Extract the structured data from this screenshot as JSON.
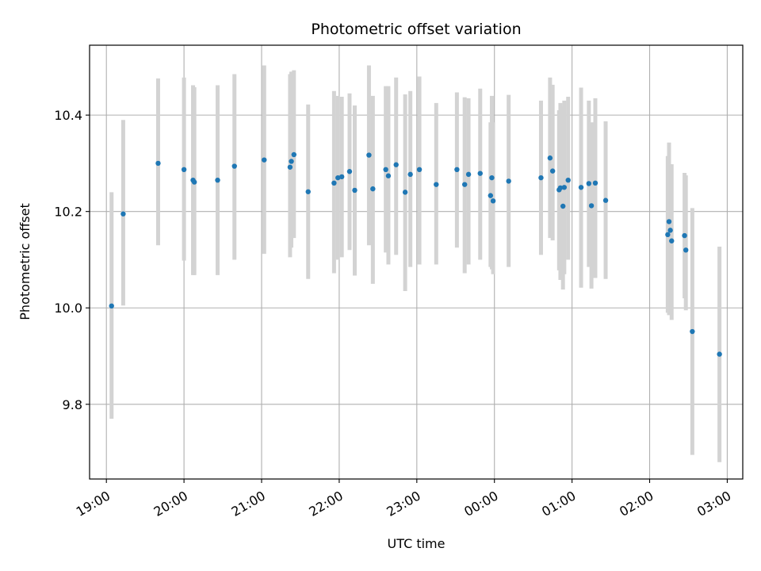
{
  "chart_data": {
    "type": "scatter",
    "title": "Photometric offset variation",
    "xlabel": "UTC time",
    "ylabel": "Photometric offset",
    "grid": true,
    "x_ticks": [
      {
        "label": "19:00",
        "hours": 19.0
      },
      {
        "label": "20:00",
        "hours": 20.0
      },
      {
        "label": "21:00",
        "hours": 21.0
      },
      {
        "label": "22:00",
        "hours": 22.0
      },
      {
        "label": "23:00",
        "hours": 23.0
      },
      {
        "label": "00:00",
        "hours": 24.0
      },
      {
        "label": "01:00",
        "hours": 25.0
      },
      {
        "label": "02:00",
        "hours": 26.0
      },
      {
        "label": "03:00",
        "hours": 27.0
      }
    ],
    "y_ticks": [
      9.8,
      10.0,
      10.2,
      10.4
    ],
    "xlim": [
      "18:47",
      "03:12"
    ],
    "ylim": [
      9.645,
      10.545
    ],
    "colors": {
      "points": "#1f77b4",
      "errorbars": "#d3d3d3",
      "grid": "#b0b0b0"
    },
    "series": [
      {
        "x": [
          "19:04",
          "19:13",
          "19:40",
          "20:00",
          "20:07",
          "20:08",
          "20:26",
          "20:39",
          "21:02",
          "21:22",
          "21:23",
          "21:25",
          "21:36",
          "21:56",
          "21:59",
          "22:02",
          "22:08",
          "22:12",
          "22:23",
          "22:26",
          "22:36",
          "22:38",
          "22:44",
          "22:51",
          "22:55",
          "23:02",
          "23:15",
          "23:31",
          "23:37",
          "23:40",
          "23:49",
          "23:57",
          "23:58",
          "23:59",
          "24:11",
          "24:36",
          "24:43",
          "24:45",
          "24:50",
          "24:51",
          "24:53",
          "24:54",
          "24:57",
          "25:07",
          "25:13",
          "25:15",
          "25:18",
          "25:26",
          "26:14",
          "26:15",
          "26:16",
          "26:17",
          "26:27",
          "26:28",
          "26:33",
          "26:54"
        ],
        "y": [
          10.004,
          10.195,
          10.3,
          10.287,
          10.265,
          10.261,
          10.265,
          10.294,
          10.307,
          10.292,
          10.304,
          10.318,
          10.241,
          10.259,
          10.27,
          10.272,
          10.283,
          10.244,
          10.317,
          10.247,
          10.287,
          10.274,
          10.297,
          10.24,
          10.277,
          10.287,
          10.256,
          10.287,
          10.256,
          10.277,
          10.279,
          10.233,
          10.27,
          10.222,
          10.263,
          10.27,
          10.311,
          10.284,
          10.245,
          10.249,
          10.211,
          10.25,
          10.265,
          10.25,
          10.258,
          10.212,
          10.259,
          10.223,
          10.152,
          10.179,
          10.161,
          10.139,
          10.15,
          10.12,
          9.951,
          9.904
        ],
        "err_low": [
          9.77,
          10.005,
          10.13,
          10.098,
          10.068,
          10.068,
          10.068,
          10.1,
          10.112,
          10.105,
          10.125,
          10.145,
          10.06,
          10.072,
          10.1,
          10.105,
          10.12,
          10.067,
          10.13,
          10.05,
          10.115,
          10.09,
          10.11,
          10.035,
          10.085,
          10.09,
          10.09,
          10.125,
          10.072,
          10.09,
          10.1,
          10.085,
          10.08,
          10.07,
          10.085,
          10.11,
          10.145,
          10.14,
          10.078,
          10.058,
          10.038,
          10.07,
          10.1,
          10.042,
          10.085,
          10.04,
          10.062,
          10.06,
          9.99,
          9.985,
          10.06,
          9.975,
          10.02,
          9.995,
          9.695,
          9.68
        ],
        "err_high": [
          10.24,
          10.39,
          10.476,
          10.478,
          10.462,
          10.458,
          10.462,
          10.485,
          10.503,
          10.485,
          10.49,
          10.493,
          10.422,
          10.45,
          10.44,
          10.438,
          10.445,
          10.42,
          10.503,
          10.44,
          10.46,
          10.46,
          10.478,
          10.443,
          10.45,
          10.48,
          10.425,
          10.447,
          10.437,
          10.435,
          10.455,
          10.385,
          10.44,
          10.385,
          10.442,
          10.43,
          10.478,
          10.463,
          10.41,
          10.425,
          10.418,
          10.43,
          10.438,
          10.457,
          10.43,
          10.385,
          10.435,
          10.387,
          10.315,
          10.343,
          10.298,
          10.298,
          10.28,
          10.275,
          10.207,
          10.127
        ]
      }
    ]
  }
}
